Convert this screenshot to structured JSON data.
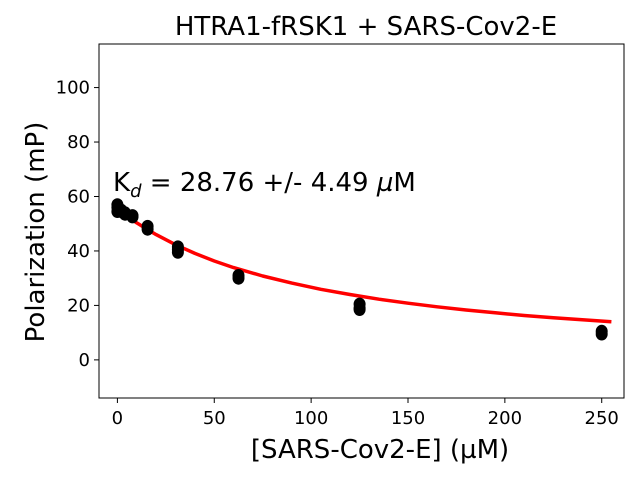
{
  "chart_data": {
    "type": "scatter",
    "title": "HTRA1-fRSK1 + SARS-Cov2-E",
    "xlabel": "[SARS-Cov2-E] (µM)",
    "ylabel": "Polarization (mP)",
    "xlim": [
      -9.5,
      261.5
    ],
    "ylim": [
      -14,
      116
    ],
    "xticks": [
      "0",
      "50",
      "100",
      "150",
      "200",
      "250"
    ],
    "yticks": [
      "0",
      "20",
      "40",
      "60",
      "80",
      "100"
    ],
    "grid": false,
    "annotation": {
      "prefix": "K",
      "subscript": "d",
      "middle": " = 28.76 +/- 4.49 ",
      "mu": "µ",
      "unit": "M"
    },
    "colors": {
      "points": "#000000",
      "fit": "#ff0000"
    },
    "series": [
      {
        "kind": "points",
        "x": [
          0,
          0,
          0,
          1.95,
          1.95,
          3.9,
          3.9,
          7.8,
          7.8,
          15.6,
          15.6,
          31.25,
          31.25,
          31.25,
          62.5,
          62.5,
          125,
          125,
          125,
          250,
          250
        ],
        "y": [
          57,
          56,
          54.5,
          55,
          54.5,
          54,
          53.5,
          53,
          52.5,
          49,
          48,
          41.5,
          40.5,
          39.5,
          31,
          30,
          20.5,
          19,
          18.5,
          10.5,
          9.5
        ]
      },
      {
        "kind": "fit",
        "x": [
          0,
          5,
          10,
          15,
          20,
          30,
          40,
          50,
          60,
          75,
          90,
          105,
          120,
          135,
          150,
          165,
          180,
          195,
          210,
          225,
          240,
          255
        ],
        "y": [
          55.5,
          52.8,
          50.3,
          48.1,
          46.0,
          42.3,
          39.1,
          36.3,
          33.9,
          30.8,
          28.2,
          25.9,
          24.0,
          22.3,
          20.8,
          19.5,
          18.3,
          17.3,
          16.3,
          15.5,
          14.7,
          14.0
        ]
      }
    ]
  }
}
